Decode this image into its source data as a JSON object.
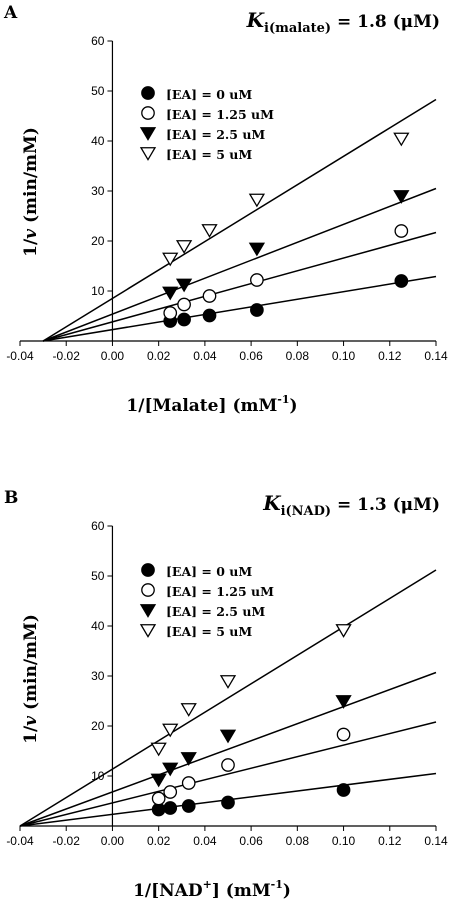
{
  "chart_data": [
    {
      "type": "scatter",
      "panel_label": "A",
      "annotation": {
        "K": "K",
        "sub": "i(malate)",
        "value": " = 1.8 (μM)"
      },
      "xlabel": {
        "main": "1/[Malate] (mM",
        "sup": "-1",
        "end": ")"
      },
      "ylabel": {
        "pre": "1/",
        "var": "v",
        "post": " (min/mM)"
      },
      "xlim": [
        -0.04,
        0.14
      ],
      "ylim": [
        0,
        60
      ],
      "xticks": [
        "-0.04",
        "-0.02",
        "0.00",
        "0.02",
        "0.04",
        "0.06",
        "0.08",
        "0.10",
        "0.12",
        "0.14"
      ],
      "yticks": [
        "10",
        "20",
        "30",
        "40",
        "50",
        "60"
      ],
      "legend_position": "upper-left",
      "series": [
        {
          "name": "[EA] = 0 uM",
          "marker": "filled-circle",
          "x": [
            0.025,
            0.031,
            0.042,
            0.0625,
            0.125
          ],
          "y": [
            4.0,
            4.3,
            5.1,
            6.2,
            12.0
          ],
          "fit": {
            "x0": -0.03,
            "x1": 0.14,
            "y0": 0.0,
            "y1": 12.9
          }
        },
        {
          "name": "[EA] = 1.25 uM",
          "marker": "open-circle",
          "x": [
            0.025,
            0.031,
            0.042,
            0.0625,
            0.125
          ],
          "y": [
            5.6,
            7.3,
            9.0,
            12.2,
            22.0
          ],
          "fit": {
            "x0": -0.03,
            "x1": 0.14,
            "y0": 0.0,
            "y1": 21.7
          }
        },
        {
          "name": "[EA] = 2.5 uM",
          "marker": "filled-triangle-down",
          "x": [
            0.025,
            0.031,
            0.0625,
            0.125
          ],
          "y": [
            9.7,
            11.3,
            18.5,
            29.0
          ],
          "fit": {
            "x0": -0.03,
            "x1": 0.14,
            "y0": 0.0,
            "y1": 30.5
          }
        },
        {
          "name": "[EA] = 5 uM",
          "marker": "open-triangle-down",
          "x": [
            0.025,
            0.031,
            0.042,
            0.0625,
            0.125
          ],
          "y": [
            16.5,
            19.0,
            22.2,
            28.3,
            40.5
          ],
          "fit": {
            "x0": -0.03,
            "x1": 0.14,
            "y0": 0.0,
            "y1": 48.3
          }
        }
      ]
    },
    {
      "type": "scatter",
      "panel_label": "B",
      "annotation": {
        "K": "K",
        "sub": "i(NAD)",
        "value": " = 1.3 (μM)"
      },
      "xlabel": {
        "main": "1/[NAD",
        "sup": "+",
        "mid": "] (mM",
        "sup2": "-1",
        "end": ")"
      },
      "ylabel": {
        "pre": "1/",
        "var": "v",
        "post": " (min/mM)"
      },
      "xlim": [
        -0.04,
        0.14
      ],
      "ylim": [
        0,
        60
      ],
      "xticks": [
        "-0.04",
        "-0.02",
        "0.00",
        "0.02",
        "0.04",
        "0.06",
        "0.08",
        "0.10",
        "0.12",
        "0.14"
      ],
      "yticks": [
        "10",
        "20",
        "30",
        "40",
        "50",
        "60"
      ],
      "legend_position": "upper-left",
      "series": [
        {
          "name": "[EA] = 0 uM",
          "marker": "filled-circle",
          "x": [
            0.02,
            0.025,
            0.033,
            0.05,
            0.1
          ],
          "y": [
            3.3,
            3.6,
            4.0,
            4.7,
            7.2
          ],
          "fit": {
            "x0": -0.04,
            "x1": 0.14,
            "y0": 0.0,
            "y1": 10.5
          }
        },
        {
          "name": "[EA] = 1.25 uM",
          "marker": "open-circle",
          "x": [
            0.02,
            0.025,
            0.033,
            0.05,
            0.1
          ],
          "y": [
            5.5,
            6.8,
            8.6,
            12.2,
            18.3
          ],
          "fit": {
            "x0": -0.04,
            "x1": 0.14,
            "y0": 0.0,
            "y1": 20.8
          }
        },
        {
          "name": "[EA] = 2.5 uM",
          "marker": "filled-triangle-down",
          "x": [
            0.02,
            0.025,
            0.033,
            0.05,
            0.1
          ],
          "y": [
            9.3,
            11.5,
            13.6,
            18.1,
            25.0
          ],
          "fit": {
            "x0": -0.04,
            "x1": 0.14,
            "y0": 0.0,
            "y1": 30.7
          }
        },
        {
          "name": "[EA] = 5 uM",
          "marker": "open-triangle-down",
          "x": [
            0.02,
            0.025,
            0.033,
            0.05,
            0.1
          ],
          "y": [
            15.5,
            19.3,
            23.4,
            29.0,
            39.2
          ],
          "fit": {
            "x0": -0.04,
            "x1": 0.14,
            "y0": 0.0,
            "y1": 51.2
          }
        }
      ]
    }
  ]
}
